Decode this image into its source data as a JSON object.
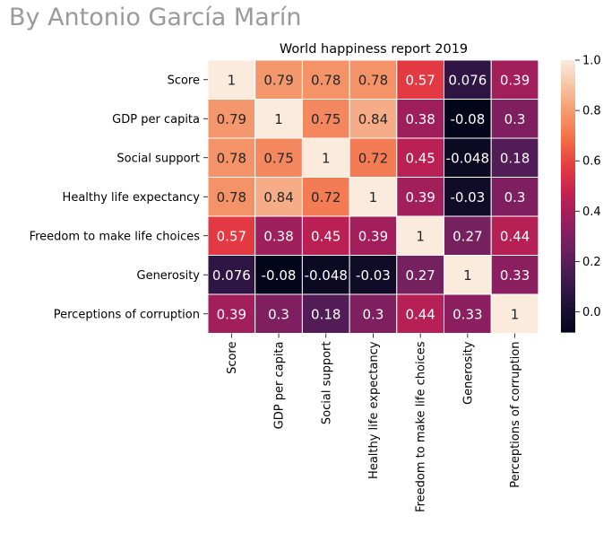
{
  "author": "By Antonio García Marín",
  "chart_data": {
    "type": "heatmap",
    "title": "World happiness report 2019",
    "labels": [
      "Score",
      "GDP per capita",
      "Social support",
      "Healthy life expectancy",
      "Freedom to make life choices",
      "Generosity",
      "Perceptions of corruption"
    ],
    "values": [
      [
        1,
        0.79,
        0.78,
        0.78,
        0.57,
        0.076,
        0.39
      ],
      [
        0.79,
        1,
        0.75,
        0.84,
        0.38,
        -0.08,
        0.3
      ],
      [
        0.78,
        0.75,
        1,
        0.72,
        0.45,
        -0.048,
        0.18
      ],
      [
        0.78,
        0.84,
        0.72,
        1,
        0.39,
        -0.03,
        0.3
      ],
      [
        0.57,
        0.38,
        0.45,
        0.39,
        1,
        0.27,
        0.44
      ],
      [
        0.076,
        -0.08,
        -0.048,
        -0.03,
        0.27,
        1,
        0.33
      ],
      [
        0.39,
        0.3,
        0.18,
        0.3,
        0.44,
        0.33,
        1
      ]
    ],
    "annotations": [
      [
        "1",
        "0.79",
        "0.78",
        "0.78",
        "0.57",
        "0.076",
        "0.39"
      ],
      [
        "0.79",
        "1",
        "0.75",
        "0.84",
        "0.38",
        "-0.08",
        "0.3"
      ],
      [
        "0.78",
        "0.75",
        "1",
        "0.72",
        "0.45",
        "-0.048",
        "0.18"
      ],
      [
        "0.78",
        "0.84",
        "0.72",
        "1",
        "0.39",
        "-0.03",
        "0.3"
      ],
      [
        "0.57",
        "0.38",
        "0.45",
        "0.39",
        "1",
        "0.27",
        "0.44"
      ],
      [
        "0.076",
        "-0.08",
        "-0.048",
        "-0.03",
        "0.27",
        "1",
        "0.33"
      ],
      [
        "0.39",
        "0.3",
        "0.18",
        "0.3",
        "0.44",
        "0.33",
        "1"
      ]
    ],
    "colorbar": {
      "range": [
        -0.08,
        1.0
      ],
      "ticks": [
        0.0,
        0.2,
        0.4,
        0.6,
        0.8,
        1.0
      ],
      "tick_labels": [
        "0.0",
        "0.2",
        "0.4",
        "0.6",
        "0.8",
        "1.0"
      ],
      "colormap": "rocket"
    }
  }
}
